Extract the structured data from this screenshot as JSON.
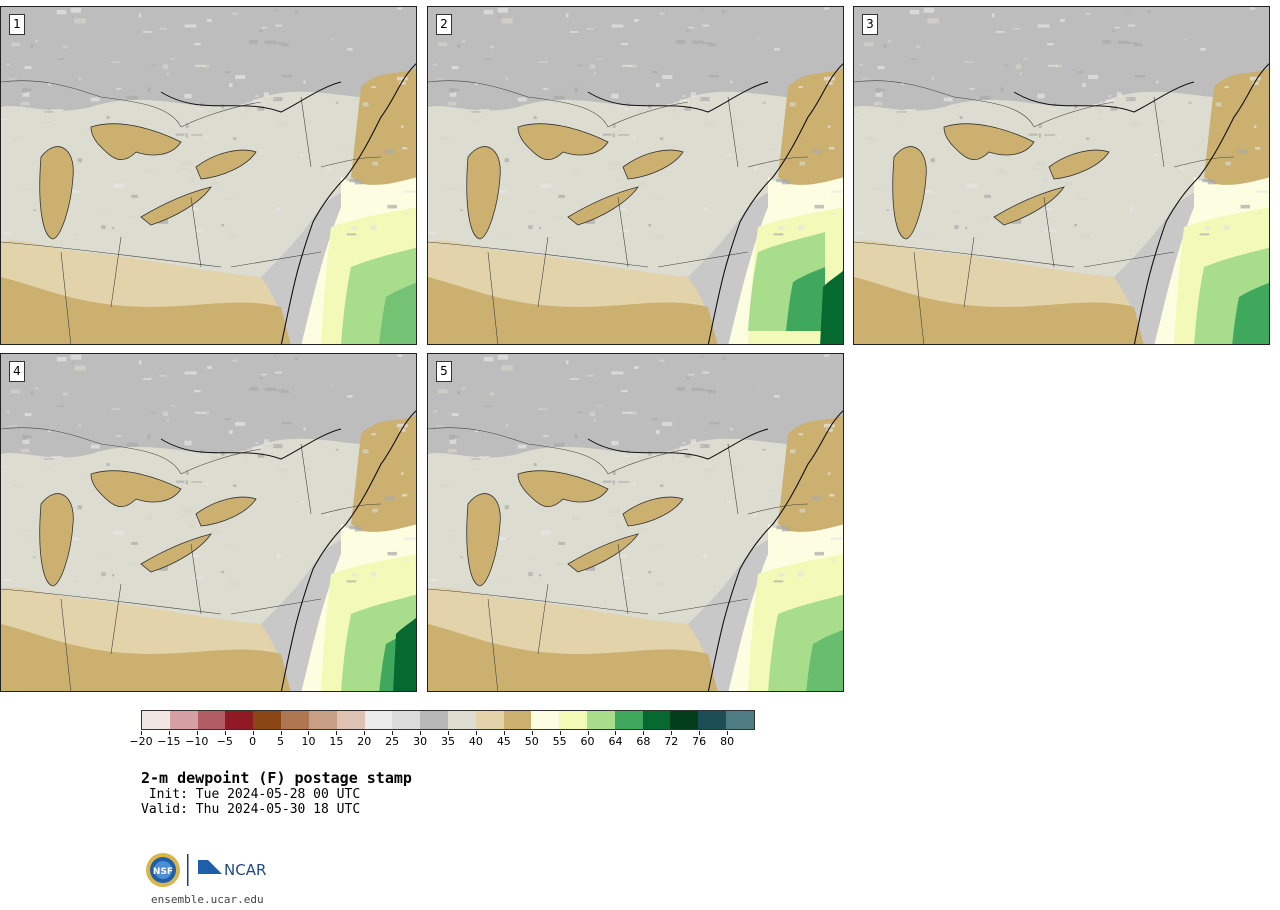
{
  "panels": [
    {
      "label": "1",
      "variant": 0
    },
    {
      "label": "2",
      "variant": 1
    },
    {
      "label": "3",
      "variant": 2
    },
    {
      "label": "4",
      "variant": 3
    },
    {
      "label": "5",
      "variant": 4
    }
  ],
  "legend": {
    "colors": [
      "#f0e6e4",
      "#d4a0a3",
      "#b25c63",
      "#8f1a23",
      "#8a4715",
      "#ae7751",
      "#c69f84",
      "#dfc2b2",
      "#ececec",
      "#dcdcdc",
      "#b8b8b8",
      "#dcdcd0",
      "#e3d3aa",
      "#cbb070",
      "#fdfde2",
      "#f3f9b6",
      "#a8dd8c",
      "#3fa85c",
      "#06692f",
      "#023d1c",
      "#1d4e56",
      "#4e7c82"
    ],
    "ticks": [
      "−20",
      "−15",
      "−10",
      "−5",
      "0",
      "5",
      "10",
      "15",
      "20",
      "25",
      "30",
      "35",
      "40",
      "45",
      "50",
      "55",
      "60",
      "64",
      "68",
      "72",
      "76",
      "80"
    ]
  },
  "title": "2-m dewpoint (F) postage stamp",
  "init_line": " Init: Tue 2024-05-28 00 UTC",
  "valid_line": "Valid: Thu 2024-05-30 18 UTC",
  "logo": {
    "nsf_text": "NSF",
    "ncar_text": "NCAR"
  },
  "url": "ensemble.ucar.edu"
}
